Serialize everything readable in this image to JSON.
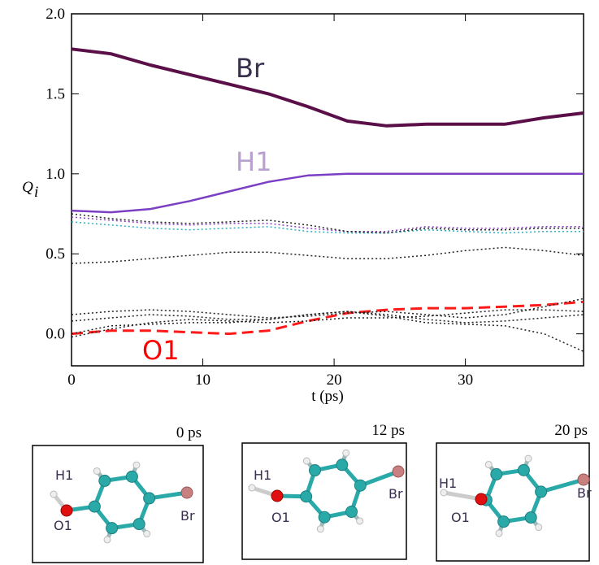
{
  "chart_data": {
    "type": "line",
    "ylabel": "Q",
    "ylabel_sub": "i",
    "xlabel": "t (ps)",
    "x": [
      0,
      3,
      6,
      9,
      12,
      15,
      18,
      21,
      24,
      27,
      30,
      33,
      36,
      39
    ],
    "xlim": [
      0,
      39
    ],
    "xticks": [
      0,
      10,
      20,
      30
    ],
    "ylim": [
      -0.2,
      2.0
    ],
    "yticks": [
      {
        "value": 0,
        "label": "0.0"
      },
      0.5,
      {
        "value": 1,
        "label": "1.0"
      },
      1.5,
      {
        "value": 2,
        "label": "2.0"
      }
    ],
    "series": [
      {
        "name": "Br",
        "color": "#5a0f48",
        "label_color": "#3a2f4f",
        "style": "solid",
        "width": 4,
        "values": [
          1.78,
          1.75,
          1.68,
          1.62,
          1.56,
          1.5,
          1.42,
          1.33,
          1.3,
          1.31,
          1.31,
          1.31,
          1.35,
          1.38
        ]
      },
      {
        "name": "H1",
        "color": "#7b3fc4",
        "label_color": "#b9a0d0",
        "style": "solid",
        "width": 2.5,
        "values": [
          0.77,
          0.76,
          0.78,
          0.83,
          0.89,
          0.95,
          0.99,
          1.0,
          1.0,
          1.0,
          1.0,
          1.0,
          1.0,
          1.0
        ]
      },
      {
        "name": "O1",
        "color": "#ff1a1a",
        "label_color": "#ff0000",
        "style": "dashed",
        "width": 3,
        "values": [
          0.0,
          0.02,
          0.02,
          0.01,
          0.0,
          0.02,
          0.08,
          0.13,
          0.15,
          0.16,
          0.16,
          0.17,
          0.18,
          0.2
        ]
      },
      {
        "color": "#8a3fc0",
        "style": "dotted",
        "width": 1.5,
        "values": [
          0.73,
          0.71,
          0.69,
          0.68,
          0.69,
          0.69,
          0.66,
          0.64,
          0.64,
          0.67,
          0.66,
          0.66,
          0.67,
          0.67
        ]
      },
      {
        "color": "#2ab0c0",
        "style": "dotted",
        "width": 1.5,
        "values": [
          0.7,
          0.68,
          0.66,
          0.65,
          0.66,
          0.67,
          0.64,
          0.63,
          0.63,
          0.65,
          0.64,
          0.63,
          0.64,
          0.64
        ]
      },
      {
        "color": "#222222",
        "style": "dotted",
        "width": 1.5,
        "values": [
          0.75,
          0.72,
          0.7,
          0.69,
          0.7,
          0.71,
          0.68,
          0.64,
          0.63,
          0.66,
          0.65,
          0.65,
          0.66,
          0.66
        ]
      },
      {
        "color": "#222222",
        "style": "dotted",
        "width": 1.5,
        "values": [
          0.44,
          0.45,
          0.47,
          0.49,
          0.51,
          0.51,
          0.49,
          0.47,
          0.47,
          0.49,
          0.52,
          0.54,
          0.52,
          0.49
        ]
      },
      {
        "color": "#222222",
        "style": "dotted",
        "width": 1.5,
        "values": [
          0.12,
          0.14,
          0.15,
          0.14,
          0.12,
          0.1,
          0.11,
          0.13,
          0.14,
          0.12,
          0.1,
          0.12,
          0.17,
          0.22
        ]
      },
      {
        "color": "#222222",
        "style": "dotted",
        "width": 1.5,
        "values": [
          0.08,
          0.1,
          0.12,
          0.11,
          0.09,
          0.09,
          0.12,
          0.14,
          0.11,
          0.07,
          0.06,
          0.05,
          0.0,
          -0.11
        ]
      },
      {
        "color": "#222222",
        "style": "dotted",
        "width": 1.5,
        "values": [
          -0.02,
          0.03,
          0.07,
          0.09,
          0.08,
          0.07,
          0.08,
          0.1,
          0.1,
          0.11,
          0.13,
          0.15,
          0.15,
          0.14
        ]
      },
      {
        "color": "#222222",
        "style": "dotted",
        "width": 1.5,
        "values": [
          0.0,
          0.05,
          0.06,
          0.07,
          0.07,
          0.09,
          0.12,
          0.14,
          0.12,
          0.09,
          0.07,
          0.08,
          0.1,
          0.12
        ]
      }
    ]
  },
  "snapshots": [
    {
      "time": "0 ps",
      "labels": {
        "h": "H1",
        "o": "O1",
        "br": "Br"
      }
    },
    {
      "time": "12 ps",
      "labels": {
        "h": "H1",
        "o": "O1",
        "br": "Br"
      }
    },
    {
      "time": "20 ps",
      "labels": {
        "h": "H1",
        "o": "O1",
        "br": "Br"
      }
    }
  ]
}
